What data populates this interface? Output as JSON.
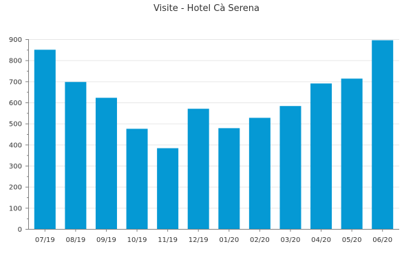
{
  "chart_data": {
    "type": "bar",
    "title": "Visite - Hotel Cà Serena",
    "xlabel": "",
    "ylabel": "",
    "categories": [
      "07/19",
      "08/19",
      "09/19",
      "10/19",
      "11/19",
      "12/19",
      "01/20",
      "02/20",
      "03/20",
      "04/20",
      "05/20",
      "06/20"
    ],
    "values": [
      850,
      697,
      622,
      475,
      383,
      570,
      478,
      527,
      583,
      690,
      713,
      895
    ],
    "ylim": [
      0,
      900
    ],
    "yticks": [
      0,
      100,
      200,
      300,
      400,
      500,
      600,
      700,
      800,
      900
    ],
    "grid": true,
    "legend": "none",
    "colors": {
      "bar": "#0599d4",
      "grid": "#e6e6e6",
      "axis": "#7f7f7f"
    }
  }
}
